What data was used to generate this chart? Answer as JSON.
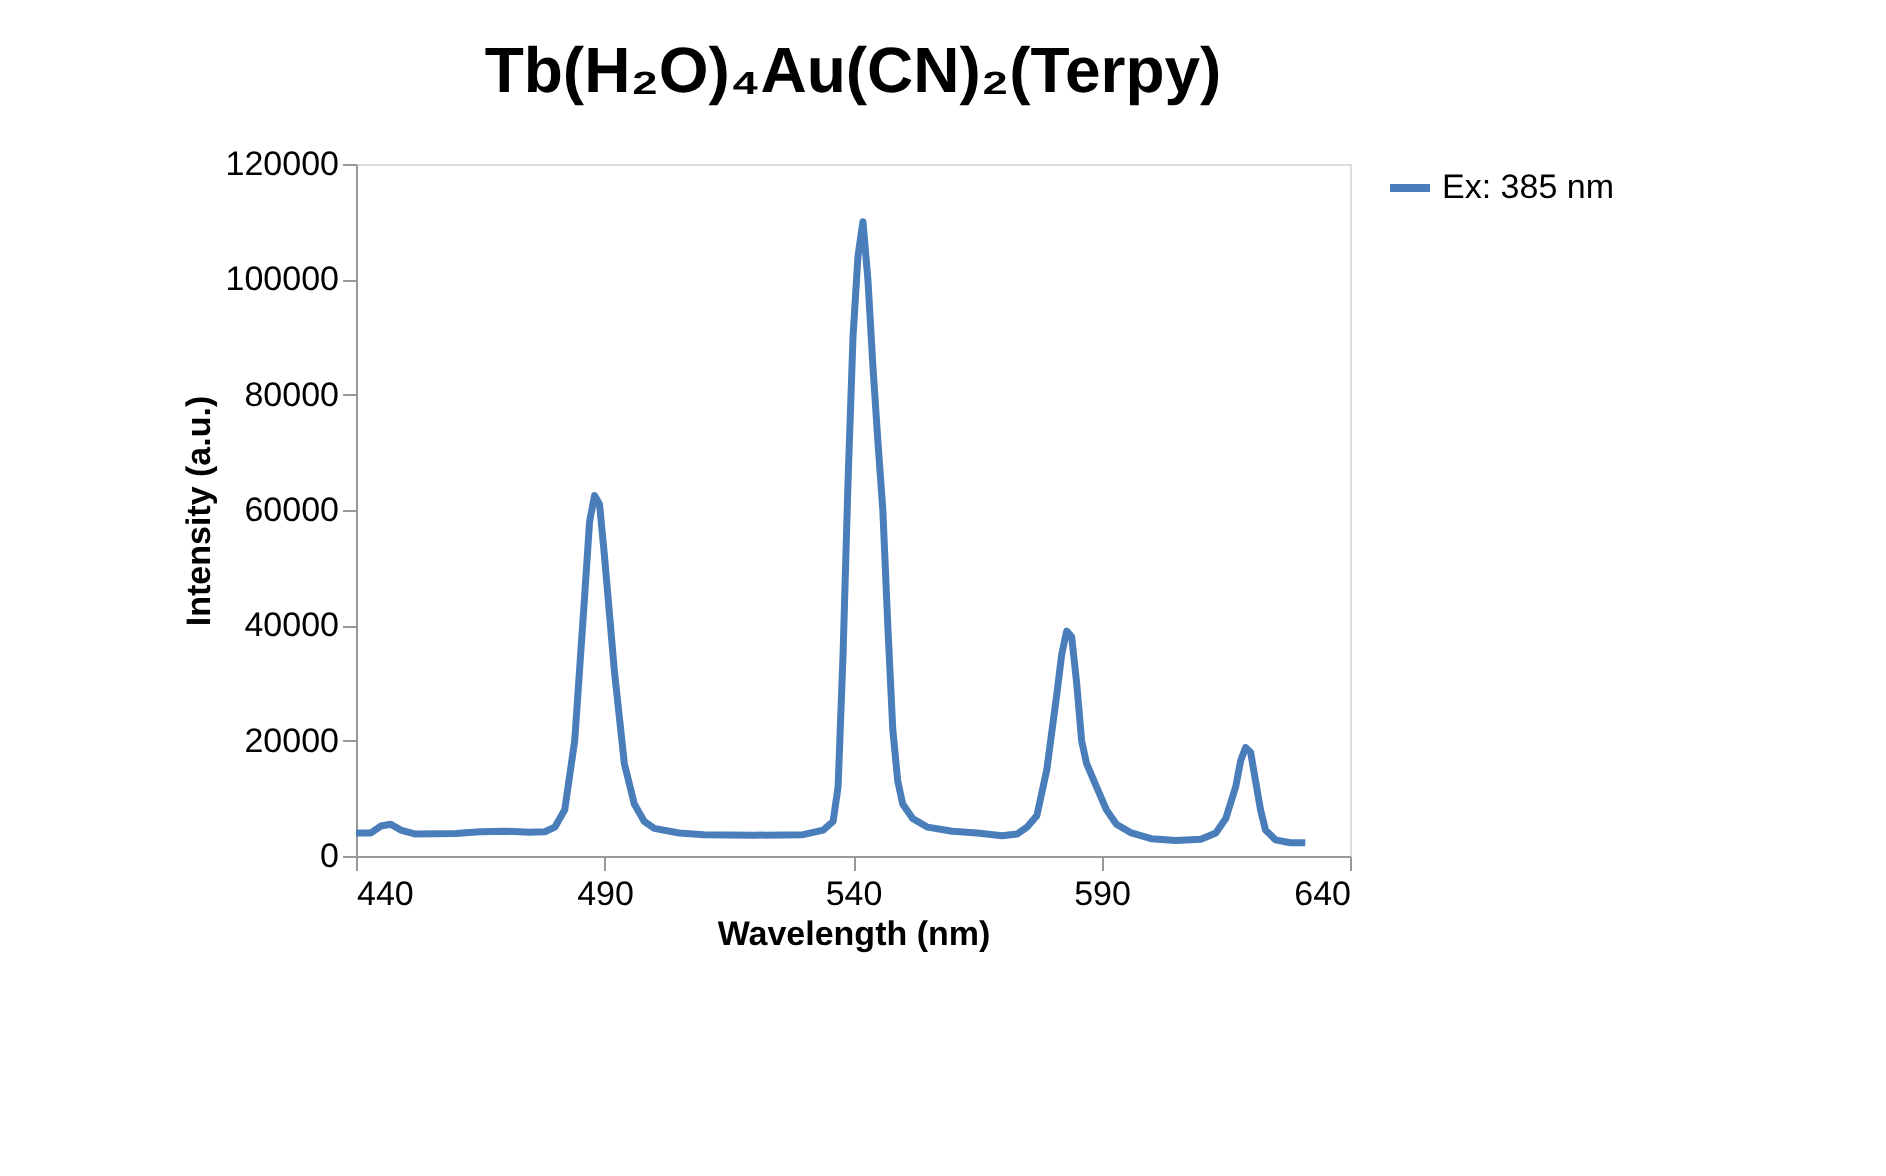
{
  "chart_data": {
    "type": "line",
    "title": "Tb(H₂O)₄Au(CN)₂(Terpy)",
    "xlabel": "Wavelength (nm)",
    "ylabel": "Intensity (a.u.)",
    "xlim": [
      440,
      640
    ],
    "xticks": [
      440,
      490,
      540,
      590,
      640
    ],
    "ylim": [
      0,
      120000
    ],
    "yticks": [
      0,
      20000,
      40000,
      60000,
      80000,
      100000,
      120000
    ],
    "grid": false,
    "legend": "right",
    "marker": "none",
    "line_style": "solid",
    "series": [
      {
        "name": "Ex: 385 nm",
        "color": "#4a7ebb",
        "x": [
          440,
          443,
          445,
          447,
          449,
          452,
          460,
          465,
          470,
          475,
          478,
          480,
          482,
          484,
          486,
          487,
          488,
          489,
          490,
          492,
          494,
          496,
          498,
          500,
          505,
          510,
          520,
          530,
          534,
          536,
          537,
          538,
          539,
          540,
          541,
          542,
          543,
          544,
          545,
          546,
          547,
          548,
          549,
          550,
          552,
          555,
          560,
          565,
          570,
          573,
          575,
          577,
          579,
          581,
          582,
          583,
          584,
          585,
          586,
          587,
          589,
          591,
          593,
          596,
          600,
          605,
          610,
          613,
          615,
          617,
          618,
          619,
          620,
          621,
          622,
          623,
          625,
          628,
          631
        ],
        "values": [
          4000,
          4000,
          5200,
          5500,
          4500,
          3800,
          3900,
          4200,
          4300,
          4100,
          4200,
          5000,
          8000,
          20000,
          45000,
          58000,
          62500,
          61000,
          52000,
          32000,
          16000,
          9000,
          6000,
          4800,
          4000,
          3700,
          3600,
          3700,
          4500,
          6000,
          12000,
          35000,
          65000,
          90000,
          104000,
          110000,
          100000,
          85000,
          72000,
          60000,
          40000,
          22000,
          13000,
          9000,
          6500,
          5000,
          4300,
          4000,
          3500,
          3800,
          5000,
          7000,
          15000,
          28000,
          35000,
          39000,
          38000,
          30000,
          20000,
          16000,
          12000,
          8000,
          5500,
          4000,
          3000,
          2700,
          2900,
          4000,
          6500,
          12000,
          16500,
          18800,
          18000,
          13000,
          8000,
          4500,
          2800,
          2300,
          2300
        ]
      }
    ]
  }
}
